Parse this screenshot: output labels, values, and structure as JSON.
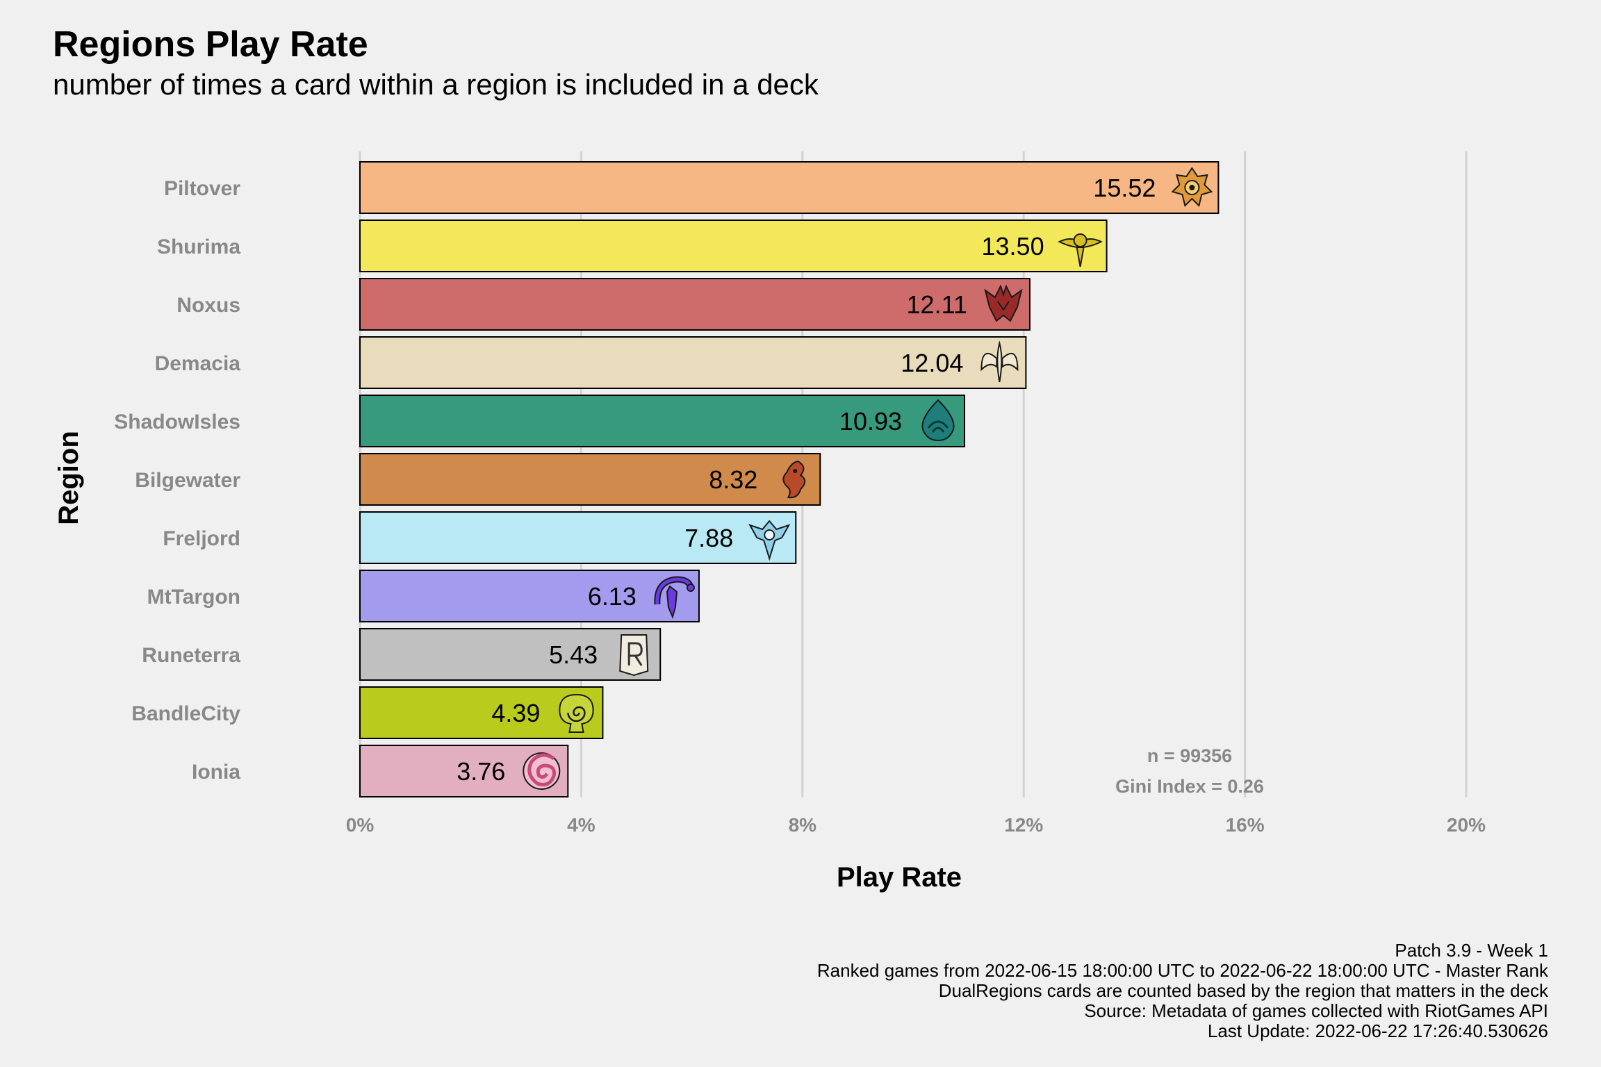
{
  "title": "Regions Play Rate",
  "subtitle": "number of times a card within a region is included in a deck",
  "caption": [
    "Patch 3.9 - Week 1",
    "Ranked games from 2022-06-15 18:00:00 UTC to 2022-06-22 18:00:00 UTC - Master Rank",
    "DualRegions cards are counted based by the region that matters in the deck",
    "Source: Metadata of games collected with RiotGames API",
    "Last Update: 2022-06-22 17:26:40.530626"
  ],
  "annotation": {
    "n_label": "n = 99356",
    "gini_label": "Gini Index = 0.26"
  },
  "chart_data": {
    "type": "bar",
    "orientation": "horizontal",
    "xlabel": "Play Rate",
    "ylabel": "Region",
    "xlim": [
      0,
      20
    ],
    "x_ticks": [
      0,
      4,
      8,
      12,
      16,
      20
    ],
    "x_tick_labels": [
      "0%",
      "4%",
      "8%",
      "12%",
      "16%",
      "20%"
    ],
    "grid": "vertical major",
    "categories": [
      "Piltover",
      "Shurima",
      "Noxus",
      "Demacia",
      "ShadowIsles",
      "Bilgewater",
      "Freljord",
      "MtTargon",
      "Runeterra",
      "BandleCity",
      "Ionia"
    ],
    "values": [
      15.52,
      13.5,
      12.11,
      12.04,
      10.93,
      8.32,
      7.88,
      6.13,
      5.43,
      4.39,
      3.76
    ],
    "value_labels": [
      "15.52",
      "13.50",
      "12.11",
      "12.04",
      "10.93",
      "8.32",
      "7.88",
      "6.13",
      "5.43",
      "4.39",
      "3.76"
    ],
    "colors": [
      "#f6b784",
      "#f2e85a",
      "#cd6c6a",
      "#e8dcbc",
      "#379a7c",
      "#d08a4c",
      "#b9e9f5",
      "#a39bee",
      "#c0c0c0",
      "#b9cb1c",
      "#e1afc0"
    ],
    "icons": [
      "piltover-icon",
      "shurima-icon",
      "noxus-icon",
      "demacia-icon",
      "shadowisles-icon",
      "bilgewater-icon",
      "freljord-icon",
      "mttargon-icon",
      "runeterra-icon",
      "bandlecity-icon",
      "ionia-icon"
    ],
    "icon_colors": [
      "#e09a3c",
      "#d8c020",
      "#9a2a2a",
      "#f2ead0",
      "#1d7e7c",
      "#b84a2a",
      "#8fd0ea",
      "#6a3ce0",
      "#f0ece0",
      "#c6d63a",
      "#c84a78"
    ]
  }
}
